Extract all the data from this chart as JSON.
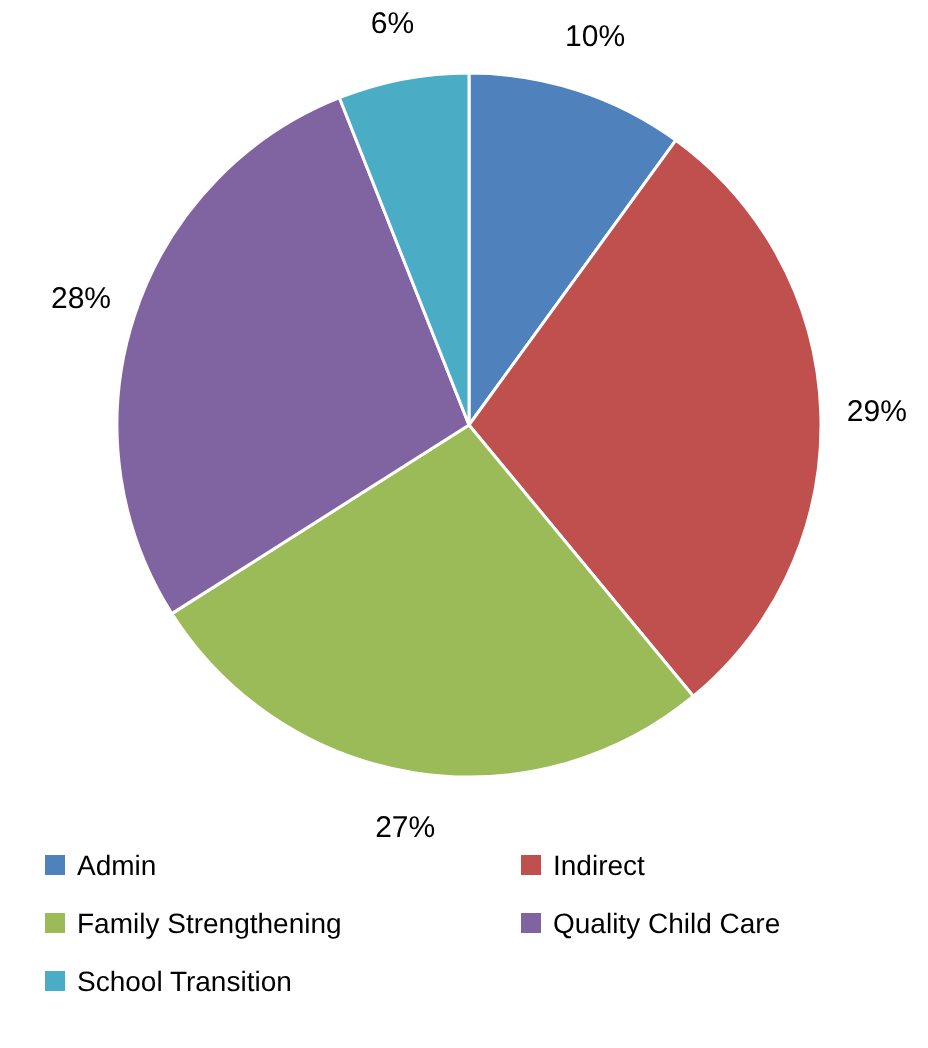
{
  "chart_data": {
    "type": "pie",
    "categories": [
      "Admin",
      "Indirect",
      "Family Strengthening",
      "Quality Child Care",
      "School Transition"
    ],
    "values": [
      10,
      29,
      27,
      28,
      6
    ],
    "colors": [
      "#4f81bd",
      "#c0504d",
      "#9bbb59",
      "#8064a2",
      "#4bacc6"
    ],
    "value_labels": [
      "10%",
      "29%",
      "27%",
      "28%",
      "6%"
    ],
    "legend": "bottom"
  }
}
